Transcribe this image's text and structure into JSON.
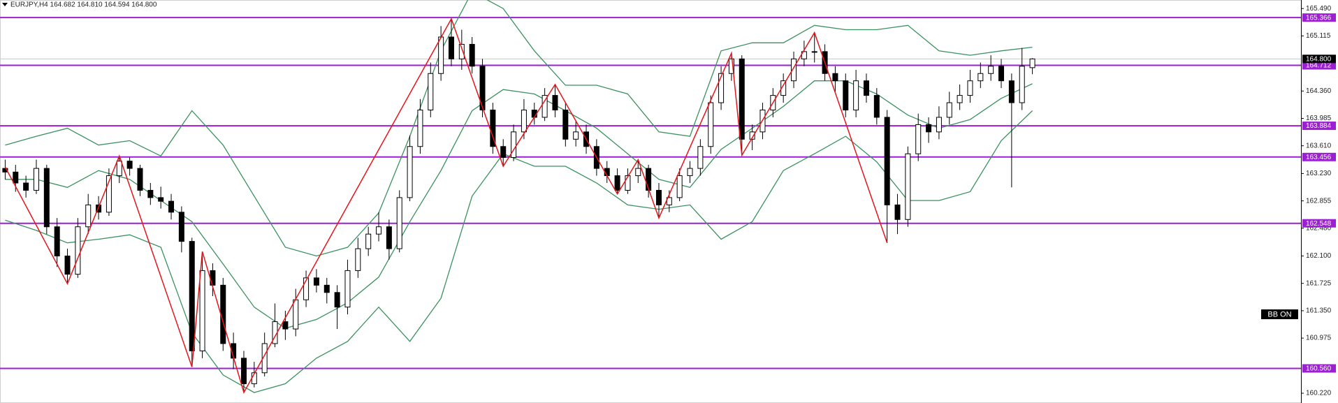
{
  "chart_data": {
    "type": "candlestick",
    "title": "EURJPY,H4  164.682 164.810 164.594 164.800",
    "badge": "BB ON",
    "up_color": "#ffffff",
    "down_color": "#000000",
    "ylim": [
      160.086,
      165.607
    ],
    "yticks": [
      {
        "value": 165.49,
        "label": "165.490"
      },
      165.115,
      {
        "value": 164.36,
        "label": "164.360"
      },
      163.985,
      {
        "value": 163.61,
        "label": "163.610"
      },
      {
        "value": 163.23,
        "label": "163.230"
      },
      162.855,
      {
        "value": 162.48,
        "label": "162.480"
      },
      {
        "value": 162.1,
        "label": "162.100"
      },
      161.725,
      {
        "value": 161.35,
        "label": "161.350"
      },
      160.975,
      {
        "value": 160.22,
        "label": "160.220"
      }
    ],
    "ohlc": [
      [
        163.3,
        163.42,
        163.15,
        163.25
      ],
      [
        163.25,
        163.35,
        162.98,
        163.1
      ],
      [
        163.1,
        163.2,
        162.9,
        163.0
      ],
      [
        163.0,
        163.42,
        162.95,
        163.3
      ],
      [
        163.3,
        163.35,
        162.4,
        162.5
      ],
      [
        162.5,
        162.62,
        161.95,
        162.1
      ],
      [
        162.1,
        162.2,
        161.72,
        161.85
      ],
      [
        161.85,
        162.62,
        161.8,
        162.5
      ],
      [
        162.5,
        162.95,
        162.4,
        162.8
      ],
      [
        162.8,
        162.92,
        162.6,
        162.7
      ],
      [
        162.7,
        163.3,
        162.65,
        163.2
      ],
      [
        163.2,
        163.47,
        163.1,
        163.4
      ],
      [
        163.4,
        163.45,
        163.2,
        163.3
      ],
      [
        163.3,
        163.35,
        162.92,
        163.0
      ],
      [
        163.0,
        163.1,
        162.8,
        162.9
      ],
      [
        162.9,
        163.05,
        162.75,
        162.85
      ],
      [
        162.85,
        162.95,
        162.6,
        162.7
      ],
      [
        162.7,
        162.78,
        162.15,
        162.3
      ],
      [
        162.3,
        162.35,
        160.58,
        160.8
      ],
      [
        160.8,
        162.16,
        160.7,
        161.9
      ],
      [
        161.9,
        162.0,
        161.55,
        161.7
      ],
      [
        161.7,
        161.8,
        160.8,
        160.9
      ],
      [
        160.9,
        161.05,
        160.55,
        160.7
      ],
      [
        160.7,
        160.8,
        160.23,
        160.35
      ],
      [
        160.35,
        160.65,
        160.3,
        160.5
      ],
      [
        160.5,
        161.05,
        160.45,
        160.9
      ],
      [
        160.9,
        161.45,
        160.85,
        161.2
      ],
      [
        161.2,
        161.35,
        160.95,
        161.1
      ],
      [
        161.1,
        161.65,
        161.0,
        161.5
      ],
      [
        161.5,
        161.9,
        161.4,
        161.8
      ],
      [
        161.8,
        161.92,
        161.6,
        161.7
      ],
      [
        161.7,
        161.8,
        161.45,
        161.6
      ],
      [
        161.6,
        161.7,
        161.1,
        161.4
      ],
      [
        161.4,
        162.05,
        161.3,
        161.9
      ],
      [
        161.9,
        162.35,
        161.8,
        162.2
      ],
      [
        162.2,
        162.5,
        162.1,
        162.4
      ],
      [
        162.4,
        162.7,
        162.3,
        162.5
      ],
      [
        162.5,
        162.6,
        162.05,
        162.2
      ],
      [
        162.2,
        163.0,
        162.15,
        162.9
      ],
      [
        162.9,
        163.75,
        162.85,
        163.6
      ],
      [
        163.6,
        164.25,
        163.5,
        164.1
      ],
      [
        164.1,
        164.75,
        164.0,
        164.6
      ],
      [
        164.6,
        165.25,
        164.5,
        165.1
      ],
      [
        165.1,
        165.35,
        164.7,
        164.8
      ],
      [
        164.8,
        165.2,
        164.65,
        165.0
      ],
      [
        165.0,
        165.1,
        164.6,
        164.7
      ],
      [
        164.7,
        164.8,
        164.0,
        164.1
      ],
      [
        164.1,
        164.2,
        163.5,
        163.6
      ],
      [
        163.6,
        163.7,
        163.33,
        163.45
      ],
      [
        163.45,
        163.9,
        163.4,
        163.8
      ],
      [
        163.8,
        164.25,
        163.7,
        164.1
      ],
      [
        164.1,
        164.2,
        163.9,
        164.0
      ],
      [
        164.0,
        164.4,
        163.95,
        164.3
      ],
      [
        164.3,
        164.45,
        164.0,
        164.1
      ],
      [
        164.1,
        164.2,
        163.6,
        163.7
      ],
      [
        163.7,
        163.95,
        163.6,
        163.8
      ],
      [
        163.8,
        163.9,
        163.5,
        163.6
      ],
      [
        163.6,
        163.7,
        163.2,
        163.3
      ],
      [
        163.3,
        163.4,
        163.1,
        163.2
      ],
      [
        163.2,
        163.3,
        162.95,
        163.0
      ],
      [
        163.0,
        163.3,
        162.95,
        163.2
      ],
      [
        163.2,
        163.42,
        163.1,
        163.3
      ],
      [
        163.3,
        163.35,
        162.9,
        163.0
      ],
      [
        163.0,
        163.1,
        162.62,
        162.8
      ],
      [
        162.8,
        163.0,
        162.7,
        162.9
      ],
      [
        162.9,
        163.3,
        162.85,
        163.2
      ],
      [
        163.2,
        163.4,
        163.1,
        163.3
      ],
      [
        163.3,
        163.7,
        163.2,
        163.6
      ],
      [
        163.6,
        164.3,
        163.5,
        164.2
      ],
      [
        164.2,
        164.7,
        164.1,
        164.6
      ],
      [
        164.6,
        164.88,
        164.5,
        164.8
      ],
      [
        164.8,
        164.85,
        163.48,
        163.7
      ],
      [
        163.7,
        163.9,
        163.55,
        163.8
      ],
      [
        163.8,
        164.2,
        163.7,
        164.1
      ],
      [
        164.1,
        164.4,
        164.0,
        164.3
      ],
      [
        164.3,
        164.6,
        164.2,
        164.5
      ],
      [
        164.5,
        164.9,
        164.4,
        164.8
      ],
      [
        164.8,
        165.05,
        164.7,
        164.9
      ],
      [
        164.9,
        165.16,
        164.75,
        164.9
      ],
      [
        164.9,
        165.0,
        164.5,
        164.6
      ],
      [
        164.6,
        164.7,
        164.35,
        164.5
      ],
      [
        164.5,
        164.6,
        164.0,
        164.1
      ],
      [
        164.1,
        164.65,
        164.0,
        164.5
      ],
      [
        164.5,
        164.6,
        164.2,
        164.3
      ],
      [
        164.3,
        164.4,
        163.9,
        164.0
      ],
      [
        164.0,
        164.1,
        162.28,
        162.8
      ],
      [
        162.8,
        162.95,
        162.4,
        162.6
      ],
      [
        162.6,
        163.6,
        162.5,
        163.5
      ],
      [
        163.5,
        164.05,
        163.4,
        163.9
      ],
      [
        163.9,
        164.0,
        163.65,
        163.8
      ],
      [
        163.8,
        164.15,
        163.7,
        164.0
      ],
      [
        164.0,
        164.35,
        163.9,
        164.2
      ],
      [
        164.2,
        164.45,
        164.1,
        164.3
      ],
      [
        164.3,
        164.65,
        164.2,
        164.5
      ],
      [
        164.5,
        164.75,
        164.4,
        164.6
      ],
      [
        164.6,
        164.85,
        164.5,
        164.7
      ],
      [
        164.7,
        164.8,
        164.4,
        164.5
      ],
      [
        164.5,
        164.6,
        163.04,
        164.2
      ],
      [
        164.2,
        164.95,
        164.1,
        164.7
      ],
      [
        164.68,
        164.81,
        164.59,
        164.8
      ]
    ],
    "bands": {
      "color": "#3b9160",
      "x": [
        0,
        3,
        6,
        9,
        12,
        15,
        18,
        21,
        24,
        27,
        30,
        33,
        36,
        39,
        42,
        45,
        48,
        51,
        54,
        57,
        60,
        63,
        66,
        69,
        72,
        75,
        78,
        81,
        84,
        87,
        90,
        93,
        96,
        99
      ],
      "upper": [
        163.62,
        163.74,
        163.85,
        163.62,
        163.68,
        163.47,
        164.09,
        163.62,
        162.92,
        162.22,
        162.1,
        162.22,
        162.69,
        163.74,
        164.91,
        165.72,
        165.49,
        164.91,
        164.44,
        164.44,
        164.32,
        163.8,
        163.74,
        164.91,
        165.02,
        165.02,
        165.26,
        165.2,
        165.2,
        165.26,
        164.91,
        164.85,
        164.91,
        164.96
      ],
      "middle": [
        163.15,
        163.15,
        163.04,
        163.27,
        163.15,
        162.86,
        162.57,
        161.99,
        161.4,
        161.11,
        161.23,
        161.46,
        161.81,
        162.57,
        163.27,
        164.09,
        164.38,
        164.32,
        164.09,
        163.85,
        163.5,
        163.15,
        163.04,
        163.56,
        163.85,
        164.15,
        164.5,
        164.5,
        164.32,
        164.03,
        163.85,
        163.97,
        164.26,
        164.46
      ],
      "lower": [
        162.59,
        162.45,
        162.28,
        162.33,
        162.39,
        162.22,
        161.05,
        160.47,
        160.23,
        160.35,
        160.7,
        160.93,
        161.4,
        160.93,
        161.52,
        162.92,
        163.5,
        163.33,
        163.33,
        163.1,
        162.8,
        162.74,
        162.8,
        162.33,
        162.57,
        163.27,
        163.5,
        163.74,
        163.39,
        162.86,
        162.86,
        162.98,
        163.68,
        164.09
      ]
    },
    "zigzag": {
      "color": "#e8141c",
      "x": [
        0,
        6,
        11,
        18,
        19,
        23,
        43,
        48,
        53,
        59,
        61,
        63,
        70,
        71,
        78,
        85
      ],
      "y": [
        163.32,
        161.72,
        163.47,
        160.58,
        162.16,
        160.23,
        165.35,
        163.33,
        164.45,
        162.95,
        163.42,
        162.62,
        164.88,
        163.48,
        165.16,
        162.28
      ]
    },
    "levels": {
      "color": "#9c1fd3",
      "values": [
        165.366,
        164.712,
        163.884,
        163.456,
        162.548,
        160.56
      ],
      "value_labels": [
        "165.366",
        "164.712",
        "163.884",
        "163.456",
        "162.548",
        "160.560"
      ]
    },
    "current_price": {
      "value": 164.8,
      "label": "164.800"
    }
  }
}
